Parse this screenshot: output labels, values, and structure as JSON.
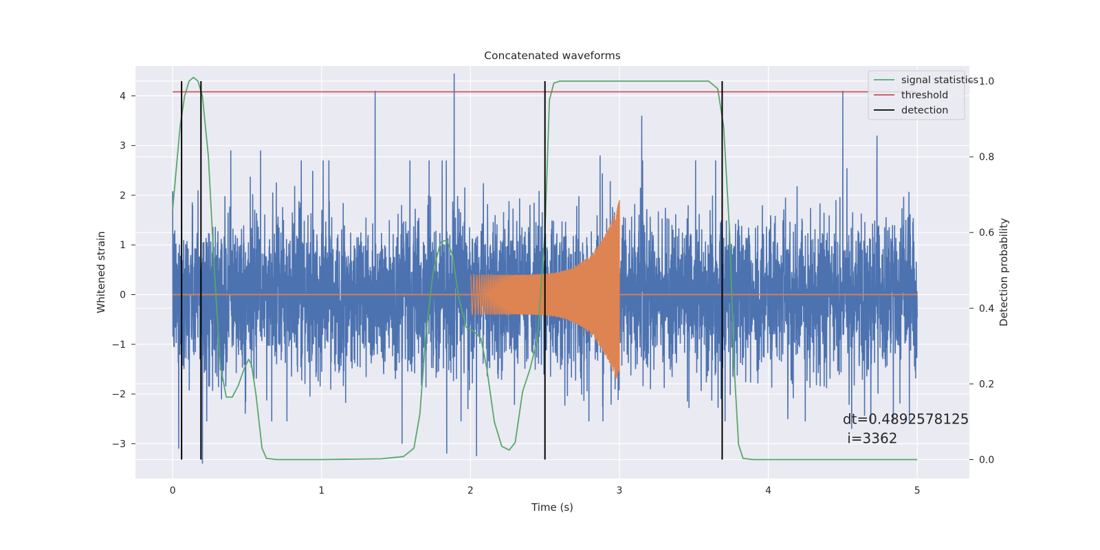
{
  "chart_data": {
    "type": "line",
    "title": "Concatenated waveforms",
    "xlabel": "Time (s)",
    "ylabel": "Whitened strain",
    "y2label": "Detection probability",
    "xlim": [
      -0.25,
      5.35
    ],
    "ylim": [
      -3.7,
      4.6
    ],
    "y2lim": [
      -0.05,
      1.04
    ],
    "xticks": [
      0,
      1,
      2,
      3,
      4,
      5
    ],
    "xtick_labels": [
      "0",
      "1",
      "2",
      "3",
      "4",
      "5"
    ],
    "yticks": [
      -3,
      -2,
      -1,
      0,
      1,
      2,
      3,
      4
    ],
    "ytick_labels": [
      "−3",
      "−2",
      "−1",
      "0",
      "1",
      "2",
      "3",
      "4"
    ],
    "y2ticks": [
      0.0,
      0.2,
      0.4,
      0.6,
      0.8,
      1.0
    ],
    "y2tick_labels": [
      "0.0",
      "0.2",
      "0.4",
      "0.6",
      "0.8",
      "1.0"
    ],
    "grid": true,
    "legend_position": "top-right",
    "colors": {
      "background": "#eaeaf2",
      "strain": "#4c72b0",
      "injection": "#dd8452",
      "signal_statistics": "#55a868",
      "threshold": "#c44e52",
      "detection": "#000000"
    },
    "series": [
      {
        "kind": "strain-noise",
        "x_range": [
          0,
          5
        ],
        "std": 0.75,
        "spike_peaks": [
          {
            "x": 0.17,
            "y": 2.1
          },
          {
            "x": 0.39,
            "y": 2.9
          },
          {
            "x": 0.59,
            "y": 2.9
          },
          {
            "x": 1.36,
            "y": 4.1
          },
          {
            "x": 1.81,
            "y": 2.7
          },
          {
            "x": 1.89,
            "y": 4.45
          },
          {
            "x": 2.87,
            "y": 2.8
          },
          {
            "x": 3.15,
            "y": 3.6
          },
          {
            "x": 4.5,
            "y": 4.1
          },
          {
            "x": 4.73,
            "y": 3.2
          }
        ],
        "spike_troughs": [
          {
            "x": 0.04,
            "y": -3.1
          },
          {
            "x": 0.2,
            "y": -3.4
          },
          {
            "x": 1.54,
            "y": -3.0
          },
          {
            "x": 1.84,
            "y": -3.2
          },
          {
            "x": 2.04,
            "y": -3.25
          },
          {
            "x": 4.56,
            "y": -2.7
          }
        ]
      },
      {
        "kind": "chirp-injection",
        "x_range": [
          2.0,
          3.0
        ],
        "amplitude_start": 0.4,
        "amplitude_end": 1.9
      },
      {
        "name": "signal statistics",
        "axis": "right",
        "points": [
          [
            0.0,
            0.66
          ],
          [
            0.02,
            0.75
          ],
          [
            0.05,
            0.88
          ],
          [
            0.08,
            0.96
          ],
          [
            0.11,
            1.0
          ],
          [
            0.14,
            1.01
          ],
          [
            0.17,
            1.0
          ],
          [
            0.2,
            0.96
          ],
          [
            0.24,
            0.8
          ],
          [
            0.28,
            0.5
          ],
          [
            0.32,
            0.25
          ],
          [
            0.36,
            0.165
          ],
          [
            0.4,
            0.165
          ],
          [
            0.44,
            0.195
          ],
          [
            0.48,
            0.24
          ],
          [
            0.51,
            0.265
          ],
          [
            0.53,
            0.25
          ],
          [
            0.56,
            0.17
          ],
          [
            0.6,
            0.03
          ],
          [
            0.63,
            0.003
          ],
          [
            0.7,
            0.0
          ],
          [
            1.0,
            0.0
          ],
          [
            1.4,
            0.002
          ],
          [
            1.55,
            0.008
          ],
          [
            1.62,
            0.03
          ],
          [
            1.66,
            0.12
          ],
          [
            1.7,
            0.33
          ],
          [
            1.75,
            0.5
          ],
          [
            1.8,
            0.575
          ],
          [
            1.84,
            0.58
          ],
          [
            1.88,
            0.54
          ],
          [
            1.92,
            0.43
          ],
          [
            1.97,
            0.35
          ],
          [
            2.02,
            0.34
          ],
          [
            2.07,
            0.32
          ],
          [
            2.11,
            0.24
          ],
          [
            2.16,
            0.1
          ],
          [
            2.21,
            0.035
          ],
          [
            2.26,
            0.025
          ],
          [
            2.3,
            0.045
          ],
          [
            2.35,
            0.18
          ],
          [
            2.4,
            0.24
          ],
          [
            2.45,
            0.32
          ],
          [
            2.5,
            0.6
          ],
          [
            2.53,
            0.95
          ],
          [
            2.56,
            0.995
          ],
          [
            2.6,
            1.0
          ],
          [
            3.6,
            1.0
          ],
          [
            3.66,
            0.98
          ],
          [
            3.7,
            0.88
          ],
          [
            3.74,
            0.6
          ],
          [
            3.77,
            0.25
          ],
          [
            3.8,
            0.04
          ],
          [
            3.83,
            0.003
          ],
          [
            3.9,
            0.0
          ],
          [
            5.0,
            0.0
          ]
        ]
      },
      {
        "name": "threshold",
        "axis": "left",
        "x": [
          0,
          5
        ],
        "y": [
          4.08,
          4.08
        ]
      },
      {
        "name": "detection",
        "axis": "right",
        "vlines": [
          0.06,
          0.19,
          2.5,
          3.69
        ],
        "y2_range": [
          0.0,
          1.0
        ]
      }
    ],
    "legend": [
      "signal statistics",
      "threshold",
      "detection"
    ],
    "annotation": {
      "line1": "dt=0.4892578125",
      "line2": " i=3362",
      "x": 4.5,
      "y": -2.6
    }
  }
}
